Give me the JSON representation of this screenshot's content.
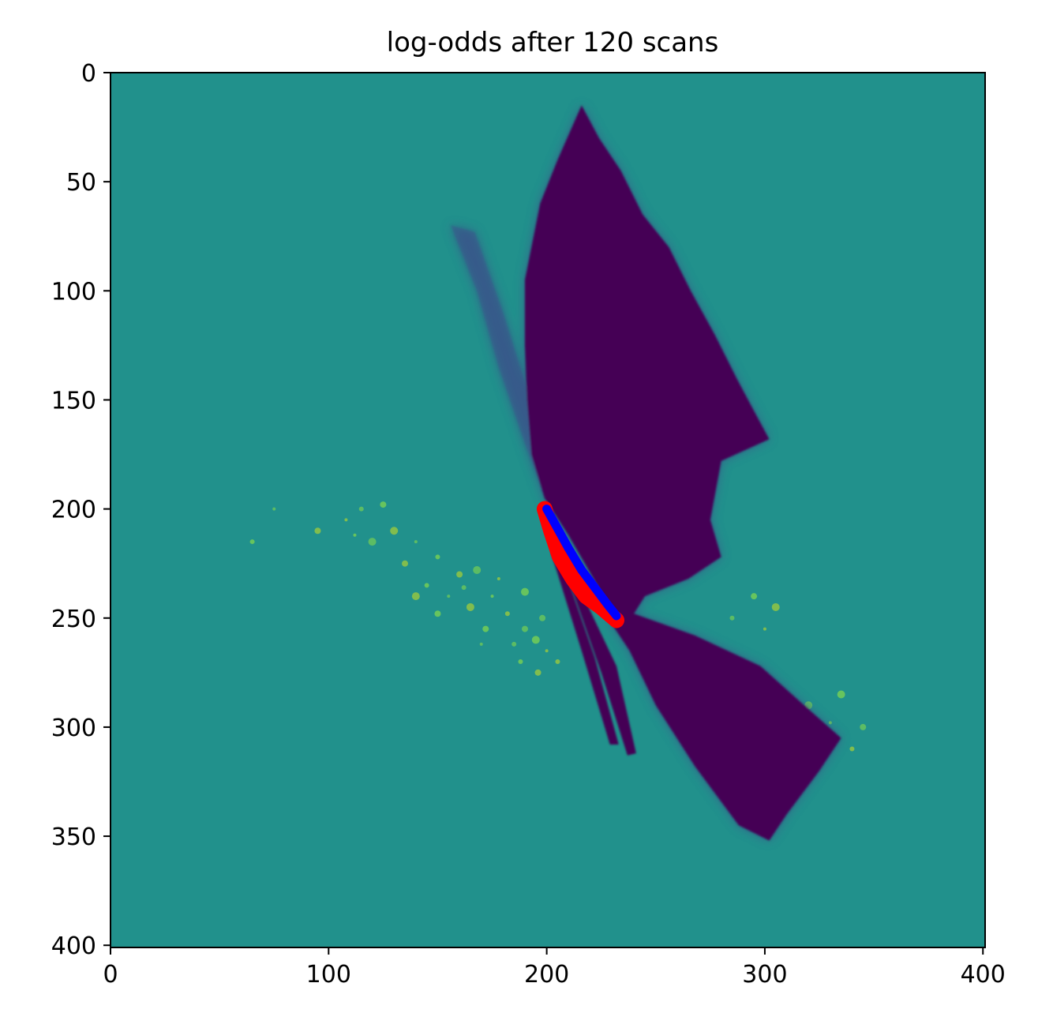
{
  "chart_data": {
    "type": "heatmap",
    "title": "log-odds after 120 scans",
    "xlabel": "",
    "ylabel": "",
    "xlim": [
      0,
      401
    ],
    "ylim": [
      401,
      0
    ],
    "x_ticks": [
      0,
      100,
      200,
      300,
      400
    ],
    "y_ticks": [
      0,
      50,
      100,
      150,
      200,
      250,
      300,
      350,
      400
    ],
    "colormap": "viridis",
    "colors": {
      "unknown": "#21918c",
      "free": "#440154",
      "free_fringe": "#3b528b",
      "occupied": "#d2e21b",
      "path_red": "#ff0000",
      "path_blue": "#0000ff"
    },
    "free_region_main": [
      [
        199,
        195
      ],
      [
        193,
        175
      ],
      [
        191,
        150
      ],
      [
        190,
        125
      ],
      [
        190,
        95
      ],
      [
        197,
        60
      ],
      [
        205,
        40
      ],
      [
        216,
        15
      ],
      [
        224,
        30
      ],
      [
        234,
        45
      ],
      [
        244,
        65
      ],
      [
        256,
        80
      ],
      [
        266,
        100
      ],
      [
        277,
        120
      ],
      [
        287,
        140
      ],
      [
        295,
        155
      ],
      [
        302,
        168
      ],
      [
        280,
        178
      ],
      [
        275,
        205
      ],
      [
        280,
        222
      ],
      [
        265,
        232
      ],
      [
        245,
        240
      ],
      [
        240,
        248
      ],
      [
        232,
        250
      ],
      [
        210,
        212
      ]
    ],
    "free_region_lower": [
      [
        240,
        248
      ],
      [
        268,
        258
      ],
      [
        298,
        272
      ],
      [
        318,
        290
      ],
      [
        335,
        305
      ],
      [
        325,
        320
      ],
      [
        310,
        340
      ],
      [
        302,
        352
      ],
      [
        288,
        345
      ],
      [
        268,
        318
      ],
      [
        250,
        290
      ],
      [
        238,
        265
      ],
      [
        228,
        250
      ]
    ],
    "free_fan_left": [
      [
        201,
        200
      ],
      [
        190,
        170
      ],
      [
        178,
        135
      ],
      [
        168,
        100
      ],
      [
        156,
        70
      ],
      [
        167,
        73
      ],
      [
        180,
        110
      ],
      [
        191,
        145
      ],
      [
        197,
        175
      ]
    ],
    "free_beam_a": [
      [
        204,
        216
      ],
      [
        222,
        268
      ],
      [
        233,
        308
      ],
      [
        229,
        308
      ],
      [
        216,
        265
      ],
      [
        202,
        220
      ]
    ],
    "free_beam_b": [
      [
        212,
        230
      ],
      [
        232,
        272
      ],
      [
        241,
        312
      ],
      [
        237,
        313
      ],
      [
        225,
        275
      ],
      [
        210,
        232
      ]
    ],
    "occupied_points": [
      [
        108,
        205
      ],
      [
        115,
        200
      ],
      [
        125,
        198
      ],
      [
        130,
        210
      ],
      [
        140,
        215
      ],
      [
        150,
        222
      ],
      [
        160,
        230
      ],
      [
        168,
        228
      ],
      [
        175,
        240
      ],
      [
        182,
        248
      ],
      [
        190,
        255
      ],
      [
        195,
        260
      ],
      [
        200,
        265
      ],
      [
        185,
        262
      ],
      [
        172,
        255
      ],
      [
        165,
        245
      ],
      [
        155,
        240
      ],
      [
        145,
        235
      ],
      [
        135,
        225
      ],
      [
        120,
        215
      ],
      [
        112,
        212
      ],
      [
        205,
        270
      ],
      [
        198,
        250
      ],
      [
        190,
        238
      ],
      [
        178,
        232
      ],
      [
        162,
        236
      ],
      [
        150,
        248
      ],
      [
        140,
        240
      ],
      [
        170,
        262
      ],
      [
        188,
        270
      ],
      [
        196,
        275
      ],
      [
        320,
        290
      ],
      [
        330,
        298
      ],
      [
        340,
        310
      ],
      [
        345,
        300
      ],
      [
        335,
        285
      ],
      [
        300,
        255
      ],
      [
        285,
        250
      ],
      [
        295,
        240
      ],
      [
        305,
        245
      ],
      [
        75,
        200
      ],
      [
        65,
        215
      ],
      [
        95,
        210
      ]
    ],
    "red_path": [
      [
        199,
        200
      ],
      [
        202,
        210
      ],
      [
        206,
        222
      ],
      [
        212,
        232
      ],
      [
        218,
        240
      ],
      [
        225,
        245
      ],
      [
        232,
        251
      ]
    ],
    "blue_path": [
      [
        200,
        200
      ],
      [
        205,
        209
      ],
      [
        210,
        218
      ],
      [
        216,
        228
      ],
      [
        222,
        236
      ],
      [
        228,
        244
      ],
      [
        232,
        249
      ]
    ]
  }
}
